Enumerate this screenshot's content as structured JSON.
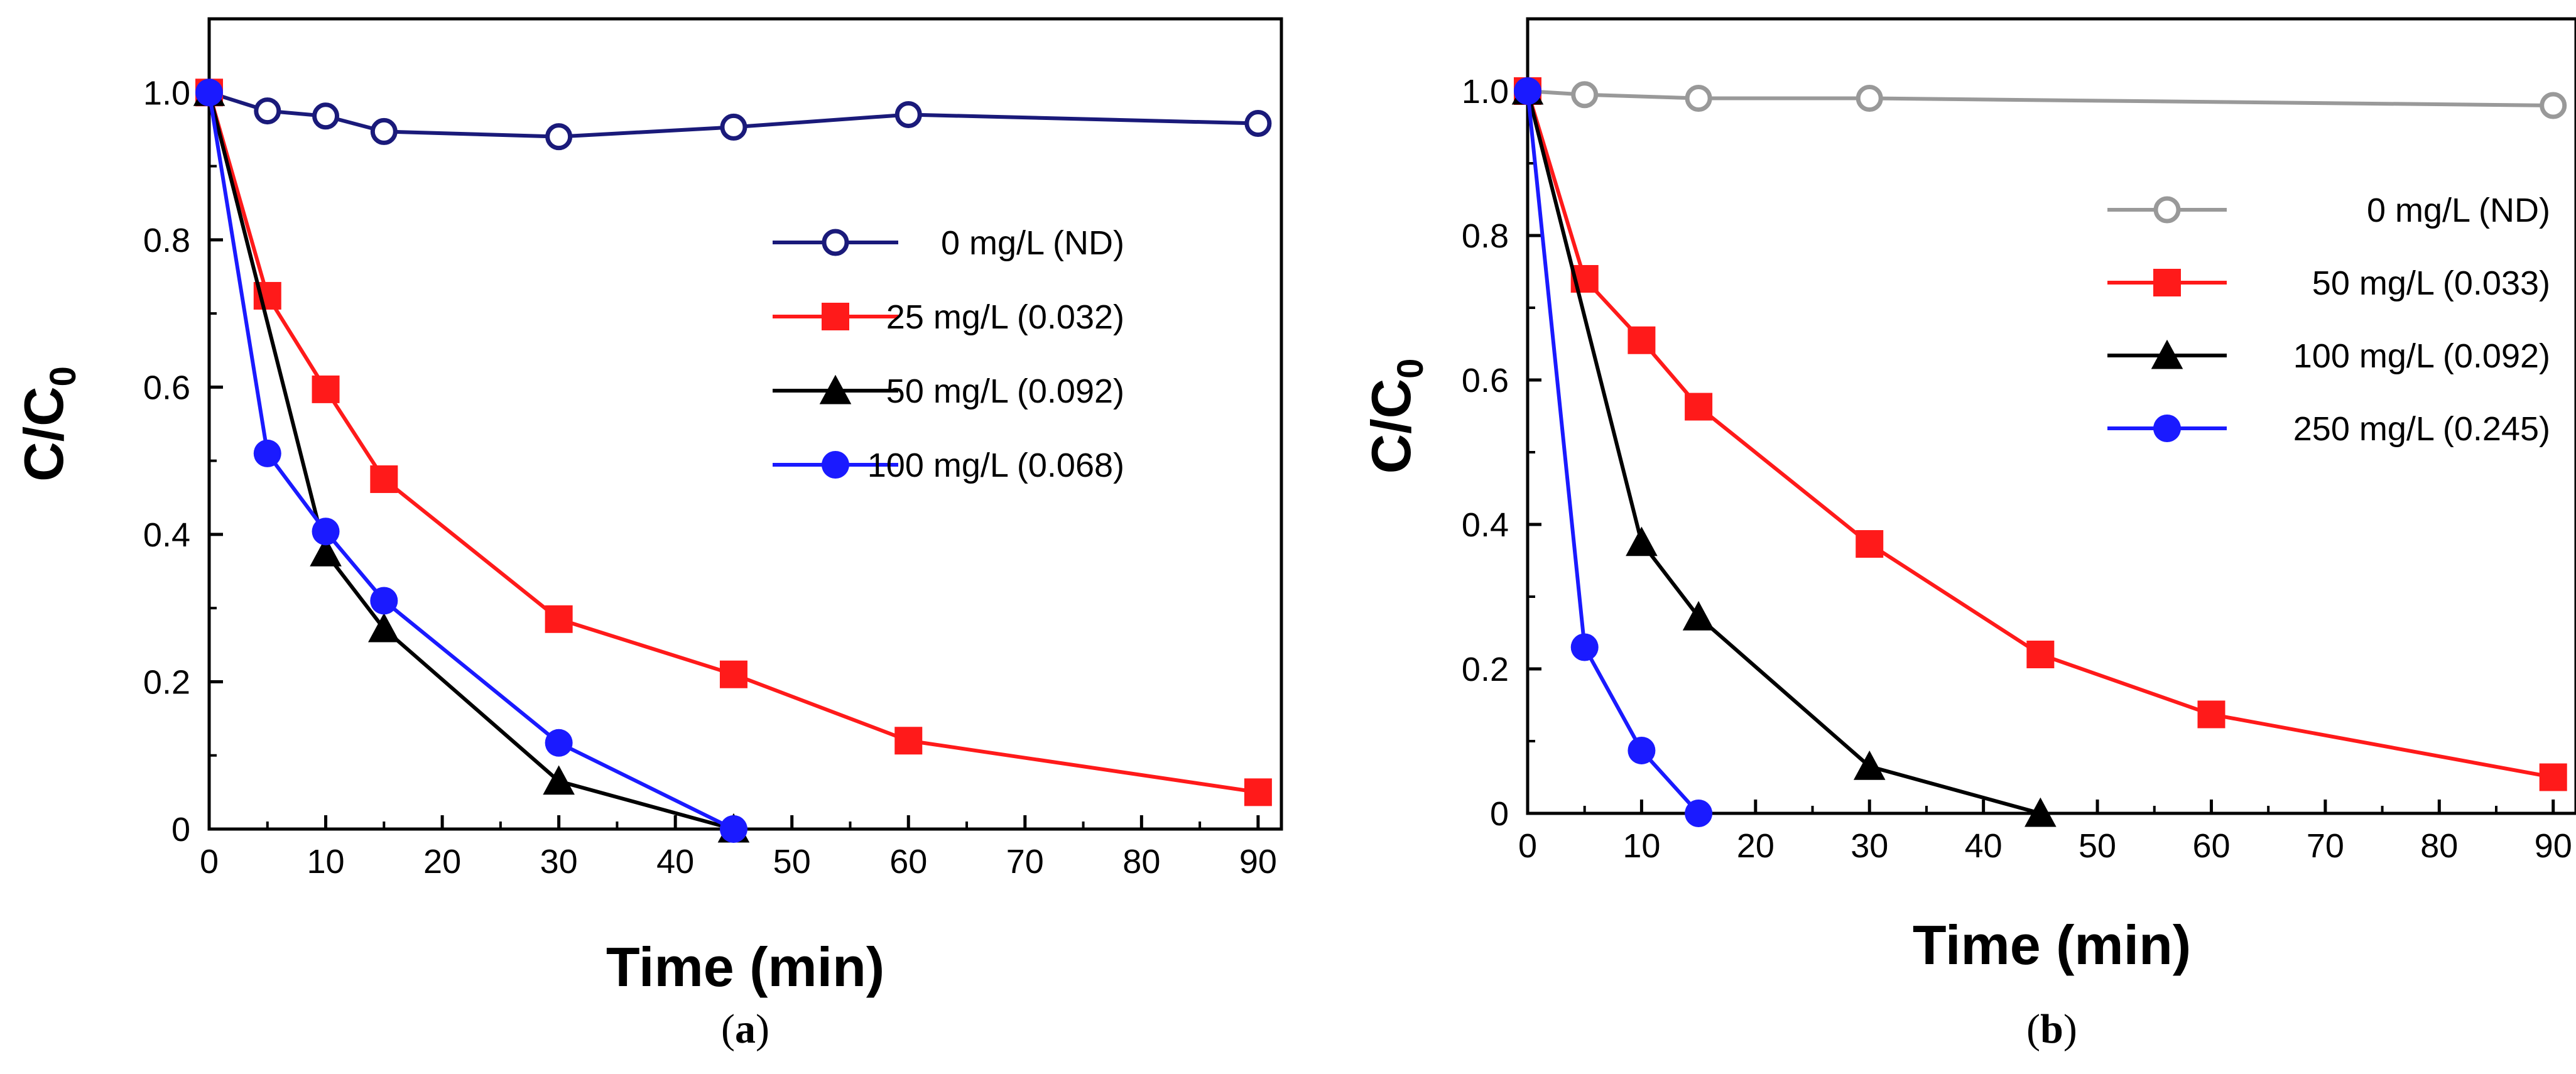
{
  "chart_data": [
    {
      "type": "line",
      "panel_label": {
        "open": "(",
        "letter": "a",
        "close": ")"
      },
      "xlabel": "Time (min)",
      "ylabel": {
        "base": "C/C",
        "sub": "0"
      },
      "xlim": [
        0,
        92
      ],
      "ylim": [
        0,
        1.1
      ],
      "xticks": [
        0,
        10,
        20,
        30,
        40,
        50,
        60,
        70,
        80,
        90
      ],
      "yticks": [
        0,
        0.2,
        0.4,
        0.6,
        0.8,
        1.0
      ],
      "ytick_labels": [
        "0",
        "0.2",
        "0.4",
        "0.6",
        "0.8",
        "1.0"
      ],
      "legend_position": "center-right",
      "series": [
        {
          "name": "0 mg/L (ND)",
          "color": "#1a1a7a",
          "marker": "circle-open",
          "x": [
            0,
            5,
            10,
            15,
            30,
            45,
            60,
            90
          ],
          "y": [
            1.0,
            0.975,
            0.968,
            0.947,
            0.94,
            0.953,
            0.97,
            0.958
          ]
        },
        {
          "name": "25 mg/L (0.032)",
          "color": "#ff1a1a",
          "marker": "square",
          "x": [
            0,
            5,
            10,
            15,
            30,
            45,
            60,
            90
          ],
          "y": [
            1.0,
            0.724,
            0.597,
            0.475,
            0.285,
            0.21,
            0.12,
            0.05
          ]
        },
        {
          "name": "50 mg/L (0.092)",
          "color": "#000000",
          "marker": "triangle",
          "x": [
            0,
            10,
            15,
            30,
            45
          ],
          "y": [
            1.0,
            0.375,
            0.272,
            0.065,
            0.0
          ]
        },
        {
          "name": "100 mg/L (0.068)",
          "color": "#1a1aff",
          "marker": "circle",
          "x": [
            0,
            5,
            10,
            15,
            30,
            45
          ],
          "y": [
            1.0,
            0.51,
            0.404,
            0.31,
            0.117,
            0.0
          ]
        }
      ]
    },
    {
      "type": "line",
      "panel_label": {
        "open": "(",
        "letter": "b",
        "close": ")"
      },
      "xlabel": "Time (min)",
      "ylabel": {
        "base": "C/C",
        "sub": "0"
      },
      "xlim": [
        0,
        92
      ],
      "ylim": [
        0,
        1.1
      ],
      "xticks": [
        0,
        10,
        20,
        30,
        40,
        50,
        60,
        70,
        80,
        90
      ],
      "yticks": [
        0,
        0.2,
        0.4,
        0.6,
        0.8,
        1.0
      ],
      "ytick_labels": [
        "0",
        "0.2",
        "0.4",
        "0.6",
        "0.8",
        "1.0"
      ],
      "legend_position": "top-right",
      "series": [
        {
          "name": "0 mg/L (ND)",
          "color": "#999999",
          "marker": "circle-open",
          "x": [
            0,
            5,
            15,
            30,
            90
          ],
          "y": [
            1.0,
            0.995,
            0.99,
            0.99,
            0.98
          ]
        },
        {
          "name": "50 mg/L (0.033)",
          "color": "#ff1a1a",
          "marker": "square",
          "x": [
            0,
            5,
            10,
            15,
            30,
            45,
            60,
            90
          ],
          "y": [
            1.0,
            0.74,
            0.655,
            0.563,
            0.373,
            0.22,
            0.137,
            0.05
          ]
        },
        {
          "name": "100 mg/L (0.092)",
          "color": "#000000",
          "marker": "triangle",
          "x": [
            0,
            10,
            15,
            30,
            45
          ],
          "y": [
            1.0,
            0.375,
            0.272,
            0.065,
            0.0
          ]
        },
        {
          "name": "250 mg/L (0.245)",
          "color": "#1a1aff",
          "marker": "circle",
          "x": [
            0,
            5,
            10,
            15
          ],
          "y": [
            1.0,
            0.23,
            0.087,
            0.0
          ]
        }
      ]
    }
  ]
}
